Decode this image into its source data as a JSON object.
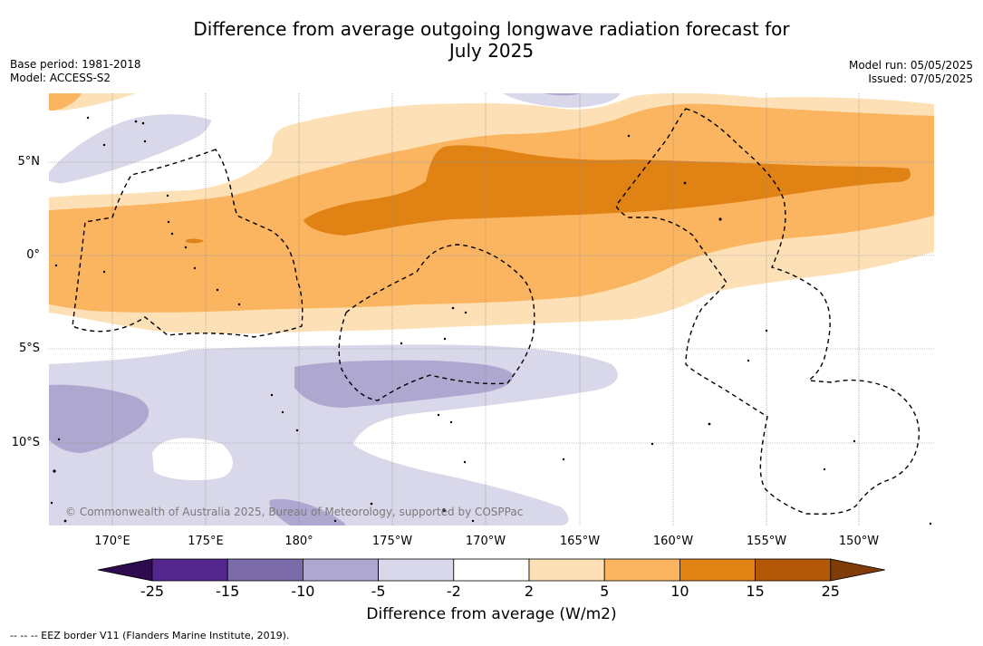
{
  "title_line1": "Difference from average outgoing longwave radiation forecast for",
  "title_line2": "July 2025",
  "base_period": "Base period: 1981-2018",
  "model": "Model: ACCESS-S2",
  "model_run": "Model run: 05/05/2025",
  "issued": "Issued: 07/05/2025",
  "copyright": "© Commonwealth of Australia 2025, Bureau of Meteorology, supported by COSPPac",
  "longitude_labels": [
    "170°E",
    "175°E",
    "180°",
    "175°W",
    "170°W",
    "165°W",
    "160°W",
    "155°W",
    "150°W"
  ],
  "latitude_labels": [
    "5°N",
    "0°",
    "5°S",
    "10°S"
  ],
  "colorbar": {
    "title": "Difference from average (W/m2)",
    "ticks": [
      "-25",
      "-15",
      "-10",
      "-5",
      "-2",
      "2",
      "5",
      "10",
      "15",
      "25"
    ],
    "colors": [
      "#2d0b4e",
      "#54278f",
      "#7b6ba8",
      "#aea8d0",
      "#d8d8ea",
      "#ffffff",
      "#fde0b5",
      "#fbb45f",
      "#e08214",
      "#b35806",
      "#7f3b08"
    ]
  },
  "legend_note": "--  --  -- EEZ border V11 (Flanders Marine Institute, 2019).",
  "chart_data": {
    "type": "heatmap",
    "map": "Pacific region (approx. 167°E–146°W, 14°S–8°N)",
    "variable": "OLR anomaly (W/m2)",
    "regions": [
      {
        "description": "Equatorial band 170°E–146°W",
        "range": "5 to 10"
      },
      {
        "description": "Band 179°W–148°W, ~1°N–5°N",
        "range": "10 to 15"
      },
      {
        "description": "Fringe ~3°S and ~6°N",
        "range": "2 to 5"
      },
      {
        "description": "South of ~5°S",
        "range": "-5 to -2"
      },
      {
        "description": "Patches near 177°W 7°S and 168°E 9°S",
        "range": "-10 to -5"
      }
    ],
    "overlay": "EEZ borders (dashed)"
  }
}
